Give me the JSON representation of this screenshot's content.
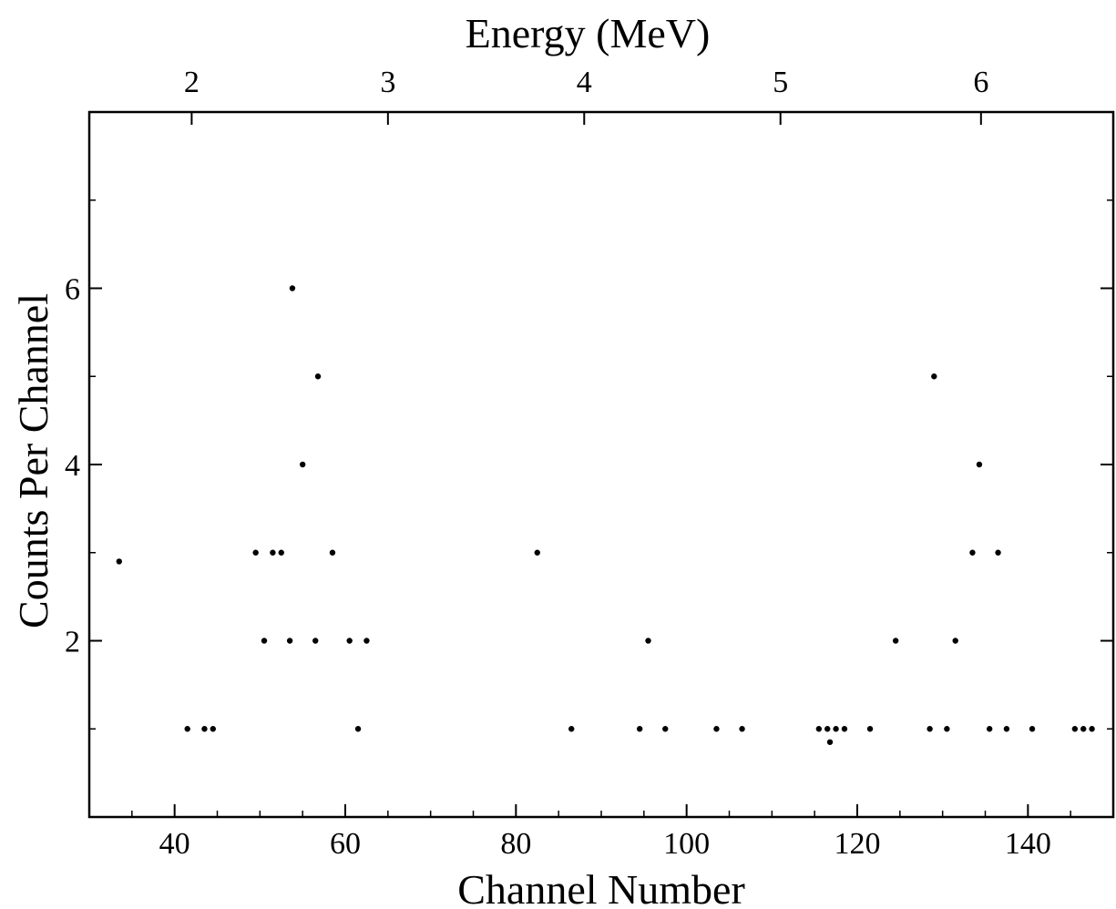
{
  "chart_data": {
    "type": "scatter",
    "title": "",
    "xlabel": "Channel Number",
    "ylabel": "Counts Per Channel",
    "top_xlabel": "Energy (MeV)",
    "xlim": [
      30,
      150
    ],
    "ylim": [
      0,
      8
    ],
    "x_ticks": [
      40,
      60,
      80,
      100,
      120,
      140
    ],
    "y_ticks": [
      2,
      4,
      6
    ],
    "top_ticks": [
      {
        "label": "2",
        "channel": 42
      },
      {
        "label": "3",
        "channel": 65
      },
      {
        "label": "4",
        "channel": 88
      },
      {
        "label": "5",
        "channel": 111
      },
      {
        "label": "6",
        "channel": 134.5
      }
    ],
    "grid": false,
    "series": [
      {
        "x": [
          33.5,
          49.5,
          51.5,
          52.5,
          58.5,
          82.5,
          133.5,
          136.5,
          50.5,
          53.5,
          56.5,
          60.5,
          62.5,
          95.5,
          124.5,
          131.5,
          41.5,
          43.5,
          44.5,
          61.5,
          86.5,
          94.5,
          97.5,
          103.5,
          106.5,
          115.5,
          116.5,
          117.5,
          118.5,
          121.5,
          128.5,
          130.5,
          135.5,
          137.5,
          140.5,
          145.5,
          146.5,
          147.5,
          55,
          56.8,
          53.8,
          129,
          134.3,
          116.8
        ],
        "y": [
          2.9,
          3,
          3,
          3,
          3,
          3,
          3,
          3,
          2,
          2,
          2,
          2,
          2,
          2,
          2,
          2,
          1,
          1,
          1,
          1,
          1,
          1,
          1,
          1,
          1,
          1,
          1,
          1,
          1,
          1,
          1,
          1,
          1,
          1,
          1,
          1,
          1,
          1,
          4,
          5,
          6,
          5,
          4,
          0.85
        ]
      }
    ]
  }
}
